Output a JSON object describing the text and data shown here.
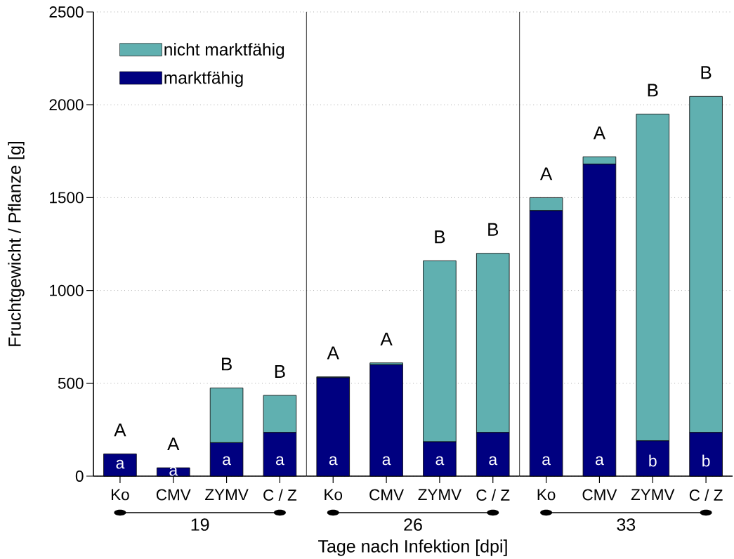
{
  "chart_data": [
    {
      "type": "bar",
      "stacked": true,
      "categories": [
        "Ko",
        "CMV",
        "ZYMV",
        "C / Z"
      ],
      "series": [
        {
          "name": "marktfähig",
          "color": "#000080",
          "values": [
            120,
            45,
            180,
            235
          ],
          "value_labels": [
            "a",
            "a",
            "a",
            "a"
          ]
        },
        {
          "name": "nicht marktfähig",
          "color": "#60B0B0",
          "values": [
            0,
            0,
            295,
            200
          ],
          "value_labels": [
            "A",
            "A",
            "B",
            "B"
          ]
        }
      ],
      "xlabel": "19",
      "ylabel": "Fruchtgewicht / Pflanze [g]",
      "ylim": [
        0,
        2500
      ],
      "yticks": [
        0,
        500,
        1000,
        1500,
        2000,
        2500
      ],
      "grid": "y",
      "legend": "top left"
    },
    {
      "type": "bar",
      "stacked": true,
      "categories": [
        "Ko",
        "CMV",
        "ZYMV",
        "C / Z"
      ],
      "series": [
        {
          "color": "#000080",
          "values": [
            530,
            600,
            185,
            235
          ],
          "value_labels": [
            "a",
            "a",
            "a",
            "a"
          ]
        },
        {
          "color": "#60B0B0",
          "values": [
            5,
            10,
            975,
            965
          ],
          "value_labels": [
            "A",
            "A",
            "B",
            "B"
          ]
        }
      ],
      "xlabel": "26",
      "ylim": [
        0,
        2500
      ],
      "yticks": [
        0,
        500,
        1000,
        1500,
        2000,
        2500
      ],
      "grid": "y",
      "tick_labels": "x",
      "annotations": [
        "Tage nach Infektion [dpi]"
      ]
    },
    {
      "type": "bar",
      "stacked": true,
      "categories": [
        "Ko",
        "CMV",
        "ZYMV",
        "C / Z"
      ],
      "series": [
        {
          "color": "#000080",
          "values": [
            1430,
            1680,
            190,
            235
          ],
          "value_labels": [
            "a",
            "a",
            "b",
            "b"
          ]
        },
        {
          "color": "#60B0B0",
          "values": [
            70,
            40,
            1760,
            1810
          ],
          "value_labels": [
            "A",
            "A",
            "B",
            "B"
          ]
        }
      ],
      "xlabel": "33",
      "ylim": [
        0,
        2500
      ],
      "yticks": [
        0,
        500,
        1000,
        1500,
        2000,
        2500
      ],
      "grid": "y",
      "tick_labels": "x"
    }
  ]
}
